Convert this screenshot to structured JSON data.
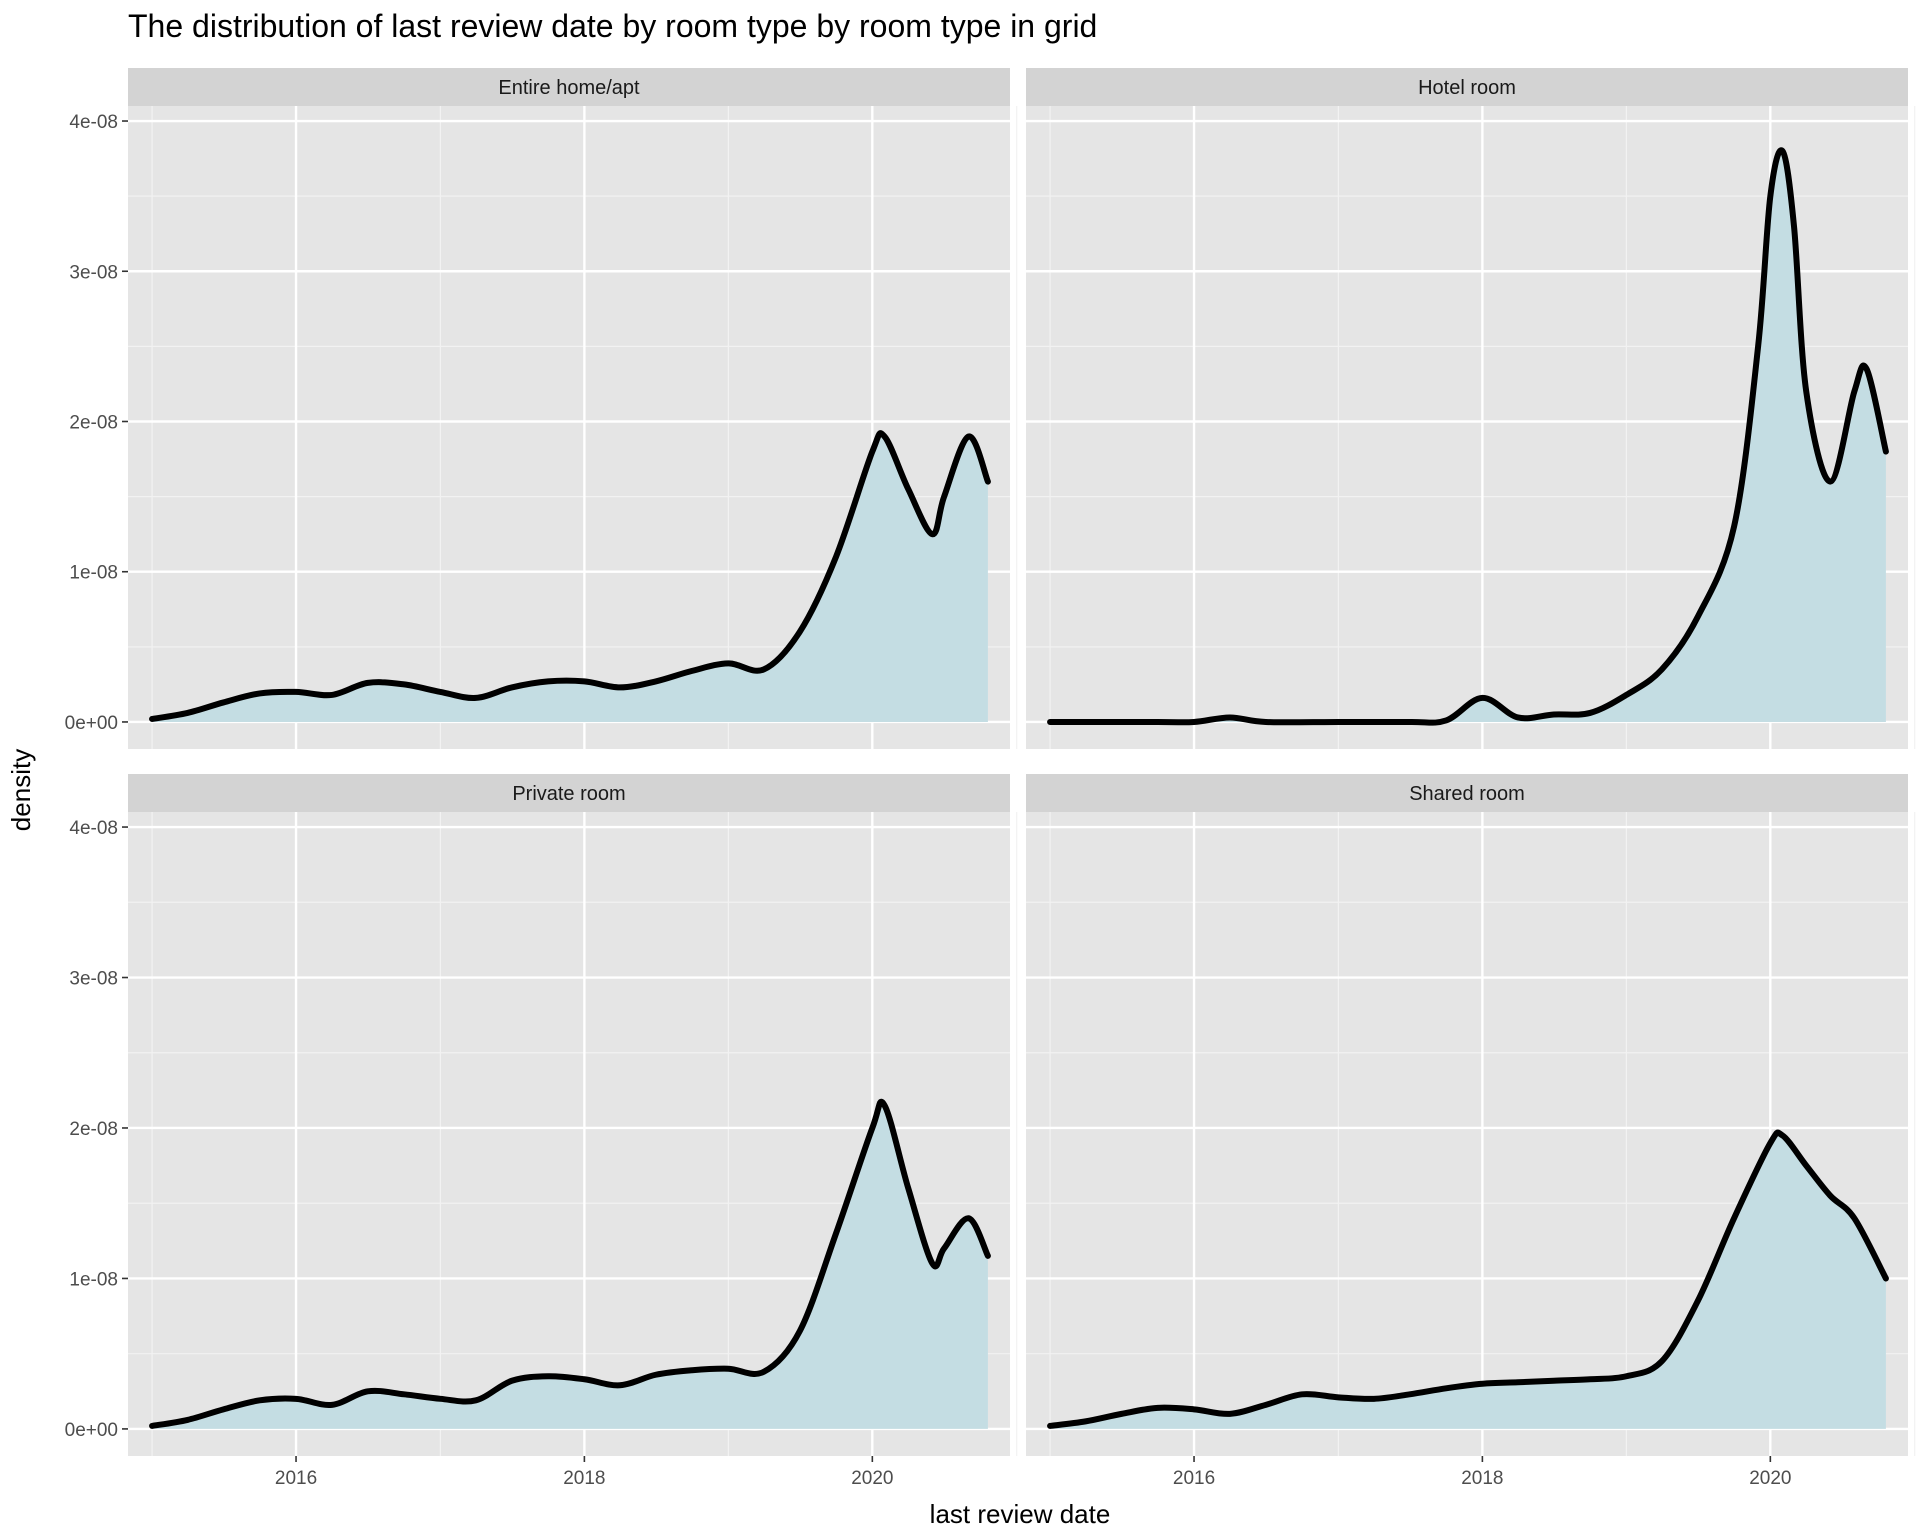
{
  "title": "The distribution of last review date by room type by room type in grid",
  "chart_data": {
    "type": "area",
    "title": "The distribution of last review date by room type by room type in grid",
    "xlabel": "last review date",
    "ylabel": "density",
    "xlim": [
      "2014-11-01",
      "2020-12-15"
    ],
    "ylim": [
      -1.8e-09,
      4.1e-08
    ],
    "x_ticks": [
      {
        "date": "2016-01-01",
        "label": "2016"
      },
      {
        "date": "2018-01-01",
        "label": "2018"
      },
      {
        "date": "2020-01-01",
        "label": "2020"
      }
    ],
    "y_ticks": [
      {
        "value": 0,
        "label": "0e+00"
      },
      {
        "value": 1e-08,
        "label": "1e-08"
      },
      {
        "value": 2e-08,
        "label": "2e-08"
      },
      {
        "value": 3e-08,
        "label": "3e-08"
      },
      {
        "value": 4e-08,
        "label": "4e-08"
      }
    ],
    "grid": true,
    "fill_color": "#c4dde3",
    "line_color": "#000000",
    "panel_background": "#e5e5e5",
    "strip_background": "#d3d3d3",
    "facets": [
      {
        "name": "Entire home/apt",
        "x": [
          "2015-01-01",
          "2015-04-01",
          "2015-07-01",
          "2015-10-01",
          "2016-01-01",
          "2016-04-01",
          "2016-07-01",
          "2016-10-01",
          "2017-01-01",
          "2017-04-01",
          "2017-07-01",
          "2017-10-01",
          "2018-01-01",
          "2018-04-01",
          "2018-07-01",
          "2018-10-01",
          "2019-01-01",
          "2019-04-01",
          "2019-07-01",
          "2019-10-01",
          "2020-01-01",
          "2020-02-01",
          "2020-04-01",
          "2020-06-01",
          "2020-07-01",
          "2020-09-01",
          "2020-10-20"
        ],
        "y": [
          2e-10,
          6e-10,
          1.3e-09,
          1.9e-09,
          2e-09,
          1.8e-09,
          2.6e-09,
          2.5e-09,
          2e-09,
          1.6e-09,
          2.3e-09,
          2.7e-09,
          2.7e-09,
          2.3e-09,
          2.7e-09,
          3.4e-09,
          3.9e-09,
          3.5e-09,
          6e-09,
          1.1e-08,
          1.8e-08,
          1.9e-08,
          1.55e-08,
          1.25e-08,
          1.5e-08,
          1.9e-08,
          1.6e-08
        ]
      },
      {
        "name": "Hotel room",
        "x": [
          "2015-01-01",
          "2015-10-01",
          "2016-01-01",
          "2016-04-01",
          "2016-07-01",
          "2017-01-01",
          "2017-07-01",
          "2017-10-01",
          "2018-01-01",
          "2018-04-01",
          "2018-07-01",
          "2018-10-01",
          "2019-01-01",
          "2019-04-01",
          "2019-07-01",
          "2019-10-01",
          "2019-12-01",
          "2020-01-01",
          "2020-02-01",
          "2020-03-01",
          "2020-04-01",
          "2020-06-01",
          "2020-08-01",
          "2020-09-01",
          "2020-10-20"
        ],
        "y": [
          0,
          0,
          0,
          3e-10,
          0,
          0,
          0,
          1e-10,
          1.6e-09,
          3e-10,
          5e-10,
          6e-10,
          1.8e-09,
          3.5e-09,
          7e-09,
          1.3e-08,
          2.5e-08,
          3.5e-08,
          3.8e-08,
          3.3e-08,
          2.2e-08,
          1.6e-08,
          2.2e-08,
          2.35e-08,
          1.8e-08
        ]
      },
      {
        "name": "Private room",
        "x": [
          "2015-01-01",
          "2015-04-01",
          "2015-07-01",
          "2015-10-01",
          "2016-01-01",
          "2016-04-01",
          "2016-07-01",
          "2016-10-01",
          "2017-01-01",
          "2017-04-01",
          "2017-07-01",
          "2017-10-01",
          "2018-01-01",
          "2018-04-01",
          "2018-07-01",
          "2018-10-01",
          "2019-01-01",
          "2019-04-01",
          "2019-07-01",
          "2019-10-01",
          "2020-01-01",
          "2020-02-01",
          "2020-04-01",
          "2020-06-01",
          "2020-07-01",
          "2020-09-01",
          "2020-10-20"
        ],
        "y": [
          2e-10,
          6e-10,
          1.3e-09,
          1.9e-09,
          2e-09,
          1.6e-09,
          2.5e-09,
          2.3e-09,
          2e-09,
          1.9e-09,
          3.2e-09,
          3.5e-09,
          3.3e-09,
          2.9e-09,
          3.6e-09,
          3.9e-09,
          4e-09,
          3.8e-09,
          6.5e-09,
          1.3e-08,
          2e-08,
          2.15e-08,
          1.6e-08,
          1.1e-08,
          1.2e-08,
          1.4e-08,
          1.15e-08
        ]
      },
      {
        "name": "Shared room",
        "x": [
          "2015-01-01",
          "2015-04-01",
          "2015-07-01",
          "2015-10-01",
          "2016-01-01",
          "2016-04-01",
          "2016-07-01",
          "2016-10-01",
          "2017-01-01",
          "2017-04-01",
          "2017-07-01",
          "2017-10-01",
          "2018-01-01",
          "2018-04-01",
          "2018-07-01",
          "2018-10-01",
          "2019-01-01",
          "2019-04-01",
          "2019-07-01",
          "2019-10-01",
          "2020-01-01",
          "2020-02-01",
          "2020-04-01",
          "2020-06-01",
          "2020-08-01",
          "2020-10-20"
        ],
        "y": [
          2e-10,
          5e-10,
          1e-09,
          1.4e-09,
          1.3e-09,
          1e-09,
          1.6e-09,
          2.3e-09,
          2.1e-09,
          2e-09,
          2.3e-09,
          2.7e-09,
          3e-09,
          3.1e-09,
          3.2e-09,
          3.3e-09,
          3.5e-09,
          4.5e-09,
          8.5e-09,
          1.4e-08,
          1.9e-08,
          1.95e-08,
          1.75e-08,
          1.55e-08,
          1.4e-08,
          1e-08
        ]
      }
    ]
  }
}
